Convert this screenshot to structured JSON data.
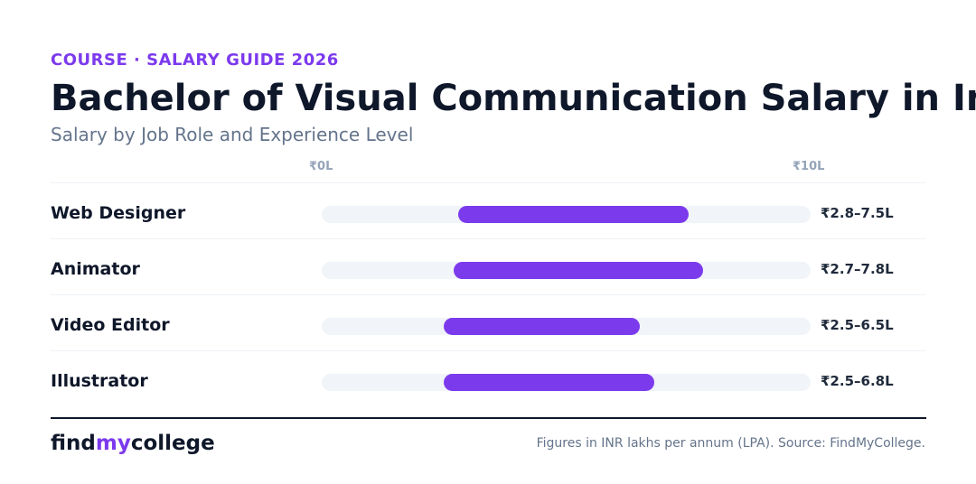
{
  "header": {
    "eyebrow": "COURSE · SALARY GUIDE 2026",
    "title": "Bachelor of Visual Communication Salary in India",
    "subtitle": "Salary by Job Role and Experience Level"
  },
  "colors": {
    "accent": "#7c3aed",
    "track": "#f1f4f8",
    "text_dark": "#0f172a",
    "text_muted": "#64748b"
  },
  "chart_data": {
    "type": "bar",
    "orientation": "horizontal-range",
    "title": "Bachelor of Visual Communication Salary in India",
    "subtitle": "Salary by Job Role and Experience Level",
    "axis": {
      "min_label": "₹0L",
      "max_label": "₹10L",
      "xlim": [
        0,
        10
      ],
      "grid": false
    },
    "categories": [
      "Web Designer",
      "Animator",
      "Video Editor",
      "Illustrator"
    ],
    "series": [
      {
        "ranges": [
          {
            "min": 2.8,
            "max": 7.5,
            "label": "₹2.8–7.5L"
          },
          {
            "min": 2.7,
            "max": 7.8,
            "label": "₹2.7–7.8L"
          },
          {
            "min": 2.5,
            "max": 6.5,
            "label": "₹2.5–6.5L"
          },
          {
            "min": 2.5,
            "max": 6.8,
            "label": "₹2.5–6.8L"
          }
        ]
      }
    ]
  },
  "footer": {
    "brand_part1": "find",
    "brand_part2": "my",
    "brand_part3": "college",
    "source": "Figures in INR lakhs per annum (LPA). Source: FindMyCollege."
  }
}
